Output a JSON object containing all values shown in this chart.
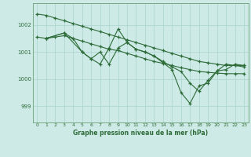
{
  "background_color": "#ceeae6",
  "grid_color": "#aad4ce",
  "line_color": "#2d6b38",
  "title": "Graphe pression niveau de la mer (hPa)",
  "ylabel_ticks": [
    999,
    1000,
    1001,
    1002
  ],
  "xlim": [
    -0.5,
    23.5
  ],
  "ylim": [
    998.4,
    1002.8
  ],
  "xticks": [
    0,
    1,
    2,
    3,
    4,
    5,
    6,
    7,
    8,
    9,
    10,
    11,
    12,
    13,
    14,
    15,
    16,
    17,
    18,
    19,
    20,
    21,
    22,
    23
  ],
  "line1_x": [
    0,
    1,
    2,
    3,
    4,
    5,
    6,
    7,
    8,
    9,
    10,
    11,
    12,
    13,
    14,
    15,
    16,
    17,
    18,
    19,
    20,
    21,
    22,
    23
  ],
  "line1_y": [
    1002.4,
    1002.35,
    1002.25,
    1002.15,
    1002.05,
    1001.95,
    1001.85,
    1001.75,
    1001.65,
    1001.55,
    1001.45,
    1001.35,
    1001.25,
    1001.15,
    1001.05,
    1000.95,
    1000.85,
    1000.75,
    1000.65,
    1000.6,
    1000.55,
    1000.5,
    1000.5,
    1000.5
  ],
  "line2_x": [
    0,
    1,
    2,
    3,
    4,
    5,
    6,
    7,
    8,
    9,
    10,
    11,
    12,
    13,
    14,
    15,
    16,
    17,
    18,
    19,
    20,
    21,
    22,
    23
  ],
  "line2_y": [
    1001.55,
    1001.5,
    1001.55,
    1001.6,
    1001.5,
    1001.4,
    1001.3,
    1001.2,
    1001.1,
    1001.05,
    1000.95,
    1000.85,
    1000.75,
    1000.65,
    1000.58,
    1000.5,
    1000.42,
    1000.35,
    1000.28,
    1000.25,
    1000.22,
    1000.2,
    1000.2,
    1000.2
  ],
  "line3_x": [
    1,
    3,
    5,
    6,
    7,
    8,
    9,
    10,
    11,
    12,
    13,
    14,
    15,
    16,
    17,
    18,
    19,
    20,
    21,
    22,
    23
  ],
  "line3_y": [
    1001.5,
    1001.7,
    1001.0,
    1000.75,
    1000.55,
    1001.15,
    1001.85,
    1001.35,
    1001.1,
    1001.0,
    1000.85,
    1000.65,
    1000.45,
    1000.28,
    999.85,
    999.55,
    999.95,
    1000.3,
    1000.35,
    1000.55,
    1000.5
  ],
  "line4_x": [
    1,
    3,
    4,
    5,
    6,
    7,
    8,
    9,
    10,
    11,
    12,
    13,
    14,
    15,
    16,
    17,
    18,
    19,
    20,
    21,
    22,
    23
  ],
  "line4_y": [
    1001.5,
    1001.7,
    1001.5,
    1001.0,
    1000.75,
    1001.0,
    1000.55,
    1001.15,
    1001.35,
    1001.1,
    1001.0,
    1000.85,
    1000.6,
    1000.35,
    999.5,
    999.1,
    999.75,
    999.85,
    1000.3,
    1000.55,
    1000.5,
    1000.45
  ],
  "title_fontsize": 5.5,
  "tick_fontsize": 4.5,
  "ytick_fontsize": 5.0
}
